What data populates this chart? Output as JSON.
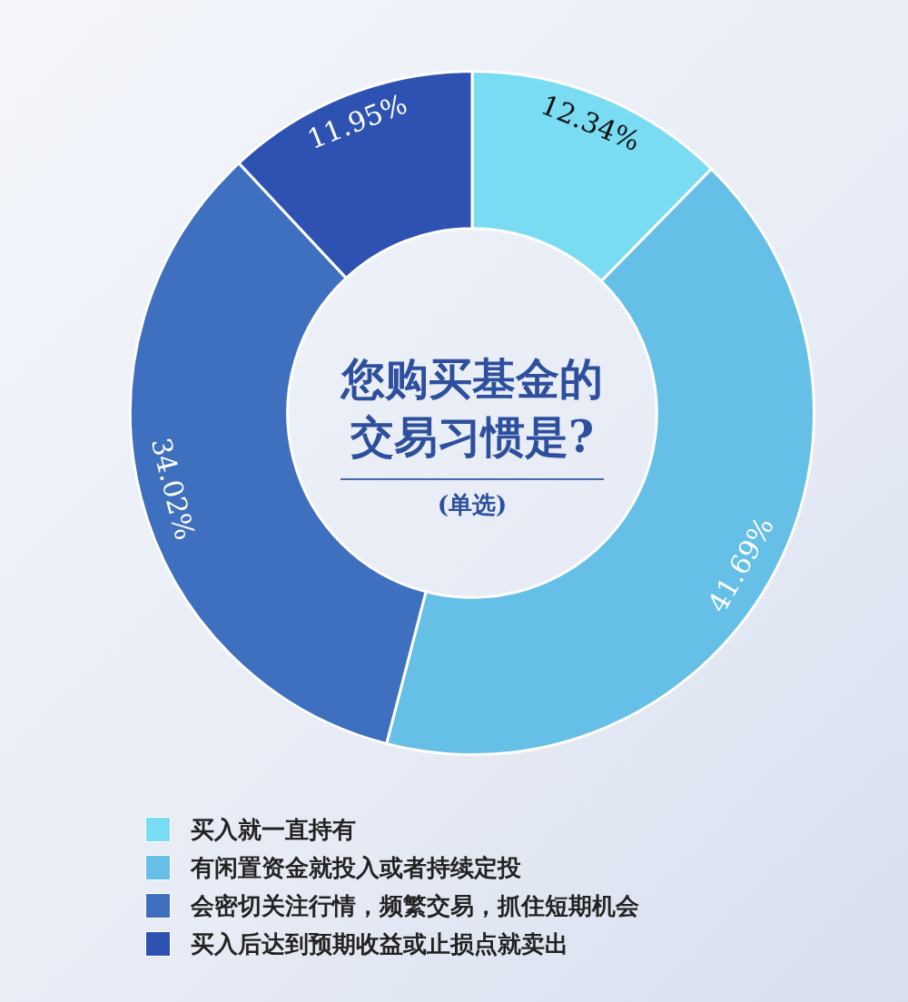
{
  "chart_data": {
    "type": "donut",
    "title": "您购买基金的交易习惯是?",
    "subtitle": "(单选)",
    "categories": [
      "买入就一直持有",
      "有闲置资金就投入或者持续定投",
      "会密切关注行情，频繁交易，抓住短期机会",
      "买入后达到预期收益或止损点就卖出"
    ],
    "values": [
      12.34,
      41.69,
      34.02,
      11.95
    ],
    "colors": [
      "#79dcf2",
      "#66bfe6",
      "#3f70c0",
      "#2d52b1"
    ],
    "value_labels": [
      "12.34%",
      "41.69%",
      "34.02%",
      "11.95%"
    ],
    "legend": "bottom left"
  }
}
